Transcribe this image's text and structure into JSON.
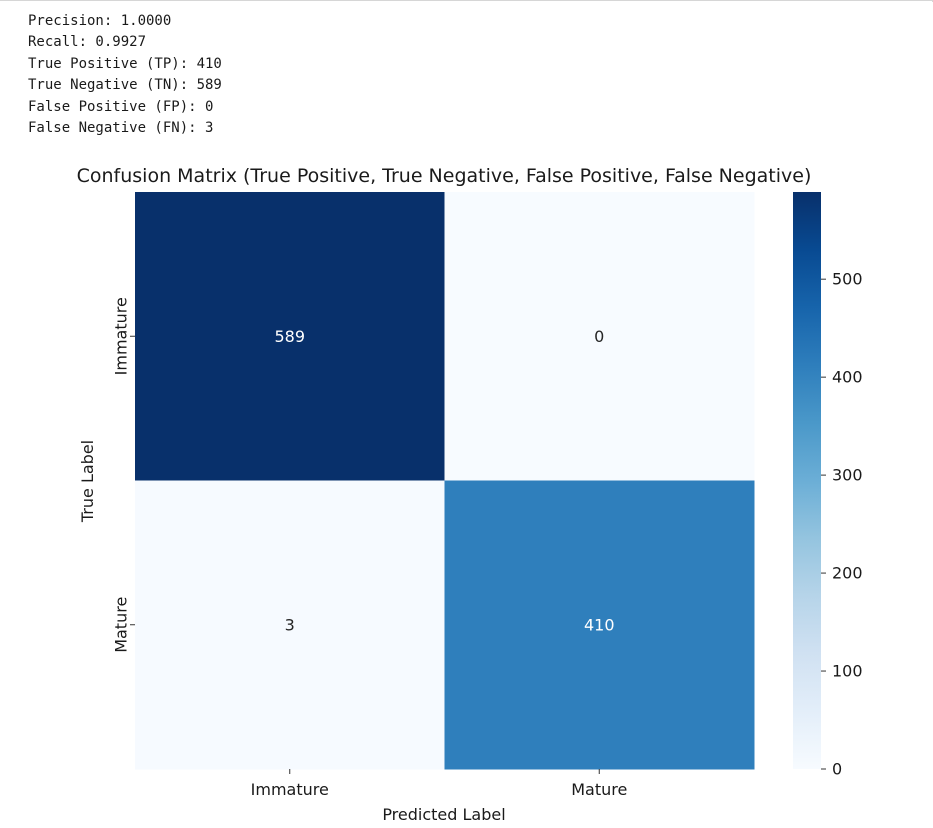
{
  "output_lines": [
    "Precision: 1.0000",
    "Recall: 0.9927",
    "True Positive (TP): 410",
    "True Negative (TN): 589",
    "False Positive (FP): 0",
    "False Negative (FN): 3"
  ],
  "chart_data": {
    "type": "heatmap",
    "title": "Confusion Matrix (True Positive, True Negative, False Positive, False Negative)",
    "xlabel": "Predicted Label",
    "ylabel": "True Label",
    "x_categories": [
      "Immature",
      "Mature"
    ],
    "y_categories": [
      "Immature",
      "Mature"
    ],
    "values": [
      [
        589,
        0
      ],
      [
        3,
        410
      ]
    ],
    "colormap": "Blues",
    "colorbar": {
      "range": [
        0,
        589
      ],
      "ticks": [
        0,
        100,
        200,
        300,
        400,
        500
      ]
    }
  }
}
